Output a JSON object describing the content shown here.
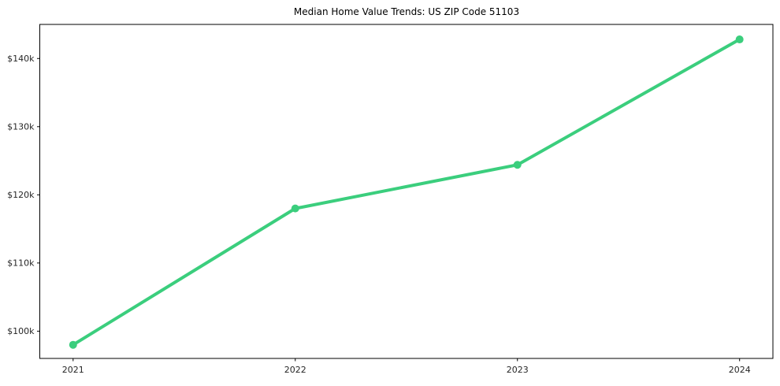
{
  "chart_data": {
    "type": "line",
    "title": "Median Home Value Trends: US ZIP Code 51103",
    "categories": [
      "2021",
      "2022",
      "2023",
      "2024"
    ],
    "series": [
      {
        "name": "Median Home Value",
        "values": [
          98000,
          118000,
          124400,
          142800
        ]
      }
    ],
    "xlabel": "",
    "ylabel": "",
    "y_ticks": {
      "values": [
        100000,
        110000,
        120000,
        130000,
        140000
      ],
      "labels": [
        "$100k",
        "$110k",
        "$120k",
        "$130k",
        "$140k"
      ]
    },
    "ylim": [
      96000,
      145000
    ],
    "grid": false,
    "legend": "none",
    "colors": {
      "line": "#3bce7d",
      "marker": "#3bce7d",
      "axis": "#000000",
      "tick_label": "#262626",
      "background": "#ffffff"
    },
    "style": {
      "line_width": 4,
      "marker_radius": 5,
      "marker_shape": "circle"
    }
  }
}
